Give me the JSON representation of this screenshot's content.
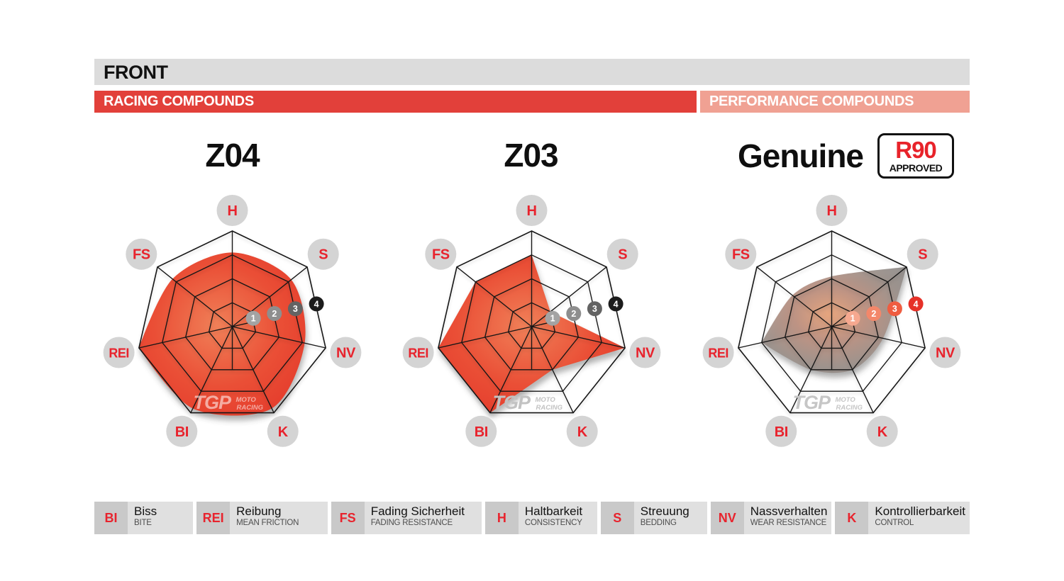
{
  "header": {
    "title": "FRONT"
  },
  "banners": {
    "racing": "RACING COMPOUNDS",
    "performance": "PERFORMANCE COMPOUNDS"
  },
  "badge": {
    "line1": "R90",
    "line2": "APPROVED"
  },
  "scale_markers": [
    "1",
    "2",
    "3",
    "4"
  ],
  "watermark": {
    "logo": "TGP",
    "line1": "MOTO",
    "line2": "RACING"
  },
  "chart_data": [
    {
      "type": "radar",
      "title": "Z04",
      "group": "RACING COMPOUNDS",
      "categories": [
        "H",
        "S",
        "NV",
        "K",
        "BI",
        "REI",
        "FS"
      ],
      "values": [
        3.1,
        3.15,
        3.1,
        3.8,
        3.8,
        4,
        3.2
      ],
      "range": [
        0,
        4
      ],
      "rings": 4
    },
    {
      "type": "radar",
      "title": "Z03",
      "group": "RACING COMPOUNDS",
      "categories": [
        "H",
        "S",
        "NV",
        "K",
        "BI",
        "REI",
        "FS"
      ],
      "values": [
        3,
        1,
        4,
        2,
        4,
        4,
        3
      ],
      "range": [
        0,
        4
      ],
      "rings": 4
    },
    {
      "type": "radar",
      "title": "Genuine",
      "group": "PERFORMANCE COMPOUNDS",
      "badge": "R90 APPROVED",
      "categories": [
        "H",
        "S",
        "NV",
        "K",
        "BI",
        "REI",
        "FS"
      ],
      "values": [
        2.1,
        4,
        2.2,
        2,
        2,
        3,
        2.1
      ],
      "range": [
        0,
        4
      ],
      "rings": 4
    }
  ],
  "charts_style": [
    {
      "fill": "red",
      "tension": 0.9,
      "sharp": [
        "REI"
      ],
      "gradient": [
        "#f08058",
        "#ea4f36",
        "#e23428"
      ],
      "marker_colors": [
        "#a3a3a3",
        "#8e8e8e",
        "#636363",
        "#1c1c1c"
      ],
      "watermark_color": "rgba(255,255,255,0.55)"
    },
    {
      "fill": "red",
      "tension": 0,
      "sharp": [],
      "gradient": [
        "#f08058",
        "#ea4f36",
        "#e23428"
      ],
      "marker_colors": [
        "#a3a3a3",
        "#8e8e8e",
        "#636363",
        "#1c1c1c"
      ],
      "watermark_color": "#c2c2c2"
    },
    {
      "fill": "gray",
      "tension": 0.85,
      "sharp": [
        "S",
        "REI"
      ],
      "gradient": [
        "#e9a47b",
        "#bd9181",
        "#9c918b",
        "#8c8c8c"
      ],
      "marker_colors": [
        "#f6a88f",
        "#f3876a",
        "#ef5c40",
        "#e63128"
      ],
      "watermark_color": "#c6c6c6"
    }
  ],
  "axis_style": {
    "label_circle": "#d4d4d4",
    "label_text": "#e8232d"
  },
  "legend": [
    {
      "abbr": "BI",
      "de": "Biss",
      "en": "BITE"
    },
    {
      "abbr": "REI",
      "de": "Reibung",
      "en": "MEAN FRICTION"
    },
    {
      "abbr": "FS",
      "de": "Fading Sicherheit",
      "en": "FADING RESISTANCE"
    },
    {
      "abbr": "H",
      "de": "Haltbarkeit",
      "en": "CONSISTENCY"
    },
    {
      "abbr": "S",
      "de": "Streuung",
      "en": "BEDDING"
    },
    {
      "abbr": "NV",
      "de": "Nassverhalten",
      "en": "WEAR RESISTANCE"
    },
    {
      "abbr": "K",
      "de": "Kontrollierbarkeit",
      "en": "CONTROL"
    }
  ],
  "colors": {
    "header_bg": "#dcdcdc",
    "racing_bg": "#e2403a",
    "performance_bg": "#f0a193",
    "legend_abbr_bg": "#c9c9c9",
    "legend_text_bg": "#e0e0e0",
    "accent_red": "#e8232d"
  }
}
